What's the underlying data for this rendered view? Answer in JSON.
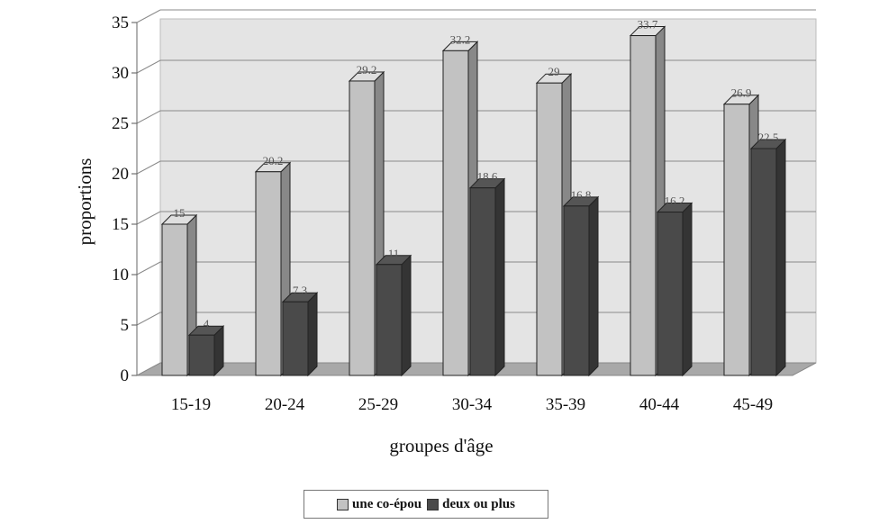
{
  "chart_data": {
    "type": "bar",
    "xlabel": "groupes d'âge",
    "ylabel": "proportions",
    "ylim": [
      0,
      35
    ],
    "yticks": [
      0,
      5,
      10,
      15,
      20,
      25,
      30,
      35
    ],
    "grid": true,
    "legend_position": "bottom",
    "categories": [
      "15-19",
      "20-24",
      "25-29",
      "30-34",
      "35-39",
      "40-44",
      "45-49"
    ],
    "series": [
      {
        "name": "une co-épou",
        "color": "#c2c2c2",
        "values": [
          15,
          20.2,
          29.2,
          32.2,
          29,
          33.7,
          26.9
        ],
        "labels": [
          "15",
          "20.2",
          "29.2",
          "32.2",
          "29",
          "33.7",
          "26.9"
        ]
      },
      {
        "name": "deux ou plus",
        "color": "#4a4a4a",
        "values": [
          4,
          7.3,
          11,
          18.6,
          16.8,
          16.2,
          22.5
        ],
        "labels": [
          "4",
          "7.3",
          "11",
          "18.6",
          "16.8",
          "16.2",
          "22.5"
        ]
      }
    ]
  }
}
